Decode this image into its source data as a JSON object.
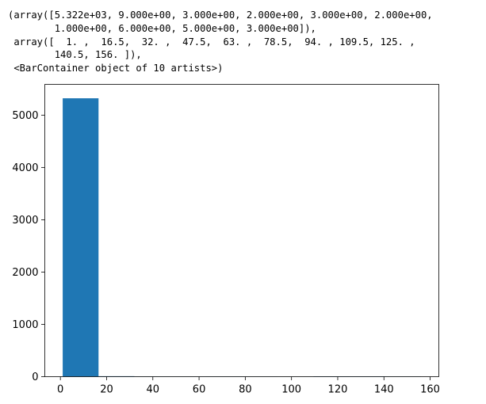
{
  "output_lines": [
    "(array([5.322e+03, 9.000e+00, 3.000e+00, 2.000e+00, 3.000e+00, 2.000e+00,",
    "        1.000e+00, 6.000e+00, 5.000e+00, 3.000e+00]),",
    " array([  1. ,  16.5,  32. ,  47.5,  63. ,  78.5,  94. , 109.5, 125. ,",
    "        140.5, 156. ]),",
    " <BarContainer object of 10 artists>)"
  ],
  "chart_data": {
    "type": "bar",
    "title": "",
    "xlabel": "",
    "ylabel": "",
    "bin_edges": [
      1,
      16.5,
      32,
      47.5,
      63,
      78.5,
      94,
      109.5,
      125,
      140.5,
      156
    ],
    "values": [
      5322,
      9,
      3,
      2,
      3,
      2,
      1,
      6,
      5,
      3
    ],
    "xlim": [
      -6.75,
      163.75
    ],
    "ylim": [
      0,
      5588.1
    ],
    "xticks": [
      0,
      20,
      40,
      60,
      80,
      100,
      120,
      140,
      160
    ],
    "xtick_labels": [
      "0",
      "20",
      "40",
      "60",
      "80",
      "100",
      "120",
      "140",
      "160"
    ],
    "yticks": [
      0,
      1000,
      2000,
      3000,
      4000,
      5000
    ],
    "ytick_labels": [
      "0",
      "1000",
      "2000",
      "3000",
      "4000",
      "5000"
    ],
    "bar_color": "#1f77b4",
    "grid": false,
    "legend": "none"
  }
}
